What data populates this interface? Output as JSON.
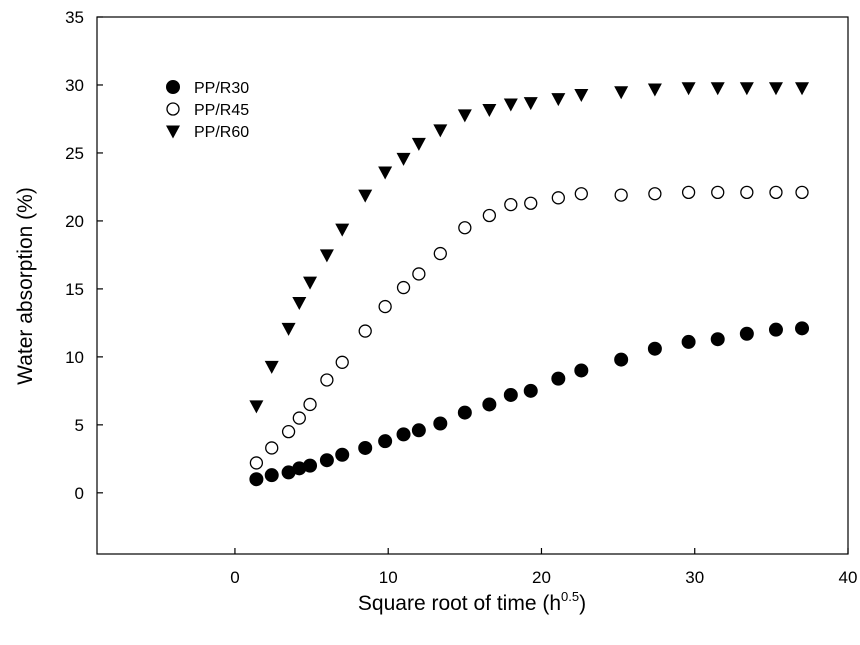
{
  "chart_data": {
    "type": "scatter",
    "title": "",
    "xlabel": "Square root of time (h",
    "xlabel_sup": "0.5",
    "xlabel_suffix": ")",
    "ylabel": "Water absorption (%)",
    "xlim": [
      -9,
      40
    ],
    "ylim": [
      -4.5,
      35
    ],
    "xticks": [
      0,
      10,
      20,
      30,
      40
    ],
    "yticks": [
      0,
      5,
      10,
      15,
      20,
      25,
      30,
      35
    ],
    "grid": false,
    "legend_position": "top-left",
    "series": [
      {
        "name": "PP/R30",
        "marker": "filled-circle",
        "color": "#000000",
        "x": [
          1.4,
          2.4,
          3.5,
          4.2,
          4.9,
          6.0,
          7.0,
          8.5,
          9.8,
          11.0,
          12.0,
          13.4,
          15.0,
          16.6,
          18.0,
          19.3,
          21.1,
          22.6,
          25.2,
          27.4,
          29.6,
          31.5,
          33.4,
          35.3,
          37.0
        ],
        "y": [
          1.0,
          1.3,
          1.5,
          1.8,
          2.0,
          2.4,
          2.8,
          3.3,
          3.8,
          4.3,
          4.6,
          5.1,
          5.9,
          6.5,
          7.2,
          7.5,
          8.4,
          9.0,
          9.8,
          10.6,
          11.1,
          11.3,
          11.7,
          12.0,
          12.1
        ]
      },
      {
        "name": "PP/R45",
        "marker": "open-circle",
        "color": "#000000",
        "x": [
          1.4,
          2.4,
          3.5,
          4.2,
          4.9,
          6.0,
          7.0,
          8.5,
          9.8,
          11.0,
          12.0,
          13.4,
          15.0,
          16.6,
          18.0,
          19.3,
          21.1,
          22.6,
          25.2,
          27.4,
          29.6,
          31.5,
          33.4,
          35.3,
          37.0
        ],
        "y": [
          2.2,
          3.3,
          4.5,
          5.5,
          6.5,
          8.3,
          9.6,
          11.9,
          13.7,
          15.1,
          16.1,
          17.6,
          19.5,
          20.4,
          21.2,
          21.3,
          21.7,
          22.0,
          21.9,
          22.0,
          22.1,
          22.1,
          22.1,
          22.1,
          22.1
        ]
      },
      {
        "name": "PP/R60",
        "marker": "filled-triangle-down",
        "color": "#000000",
        "x": [
          1.4,
          2.4,
          3.5,
          4.2,
          4.9,
          6.0,
          7.0,
          8.5,
          9.8,
          11.0,
          12.0,
          13.4,
          15.0,
          16.6,
          18.0,
          19.3,
          21.1,
          22.6,
          25.2,
          27.4,
          29.6,
          31.5,
          33.4,
          35.3,
          37.0
        ],
        "y": [
          6.4,
          9.3,
          12.1,
          14.0,
          15.5,
          17.5,
          19.4,
          21.9,
          23.6,
          24.6,
          25.7,
          26.7,
          27.8,
          28.2,
          28.6,
          28.7,
          29.0,
          29.3,
          29.5,
          29.7,
          29.8,
          29.8,
          29.8,
          29.8,
          29.8
        ]
      }
    ]
  }
}
